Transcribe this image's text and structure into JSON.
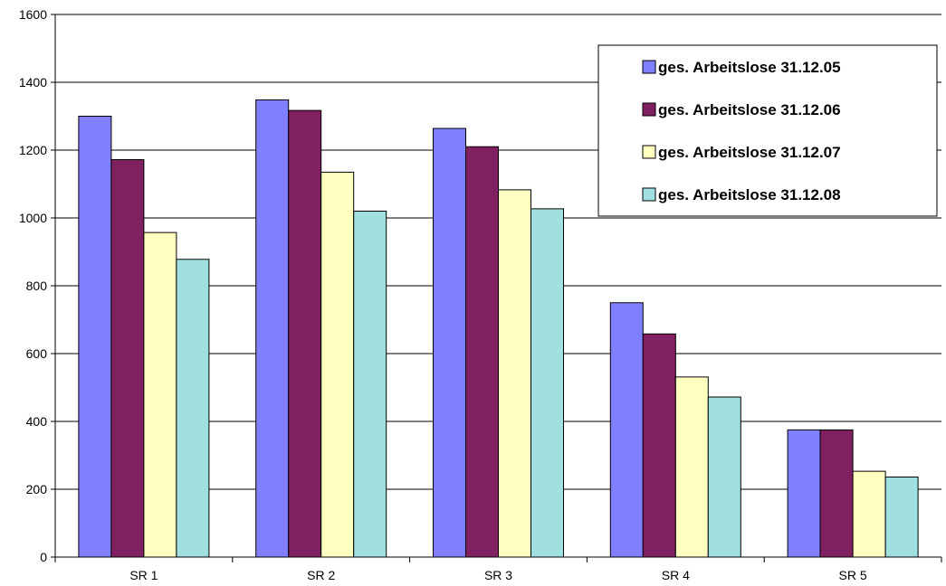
{
  "chart_data": {
    "type": "bar",
    "categories": [
      "SR 1",
      "SR 2",
      "SR 3",
      "SR 4",
      "SR 5"
    ],
    "series": [
      {
        "name": "ges. Arbeitslose 31.12.05",
        "color": "#8080FF",
        "values": [
          1300,
          1348,
          1264,
          750,
          375
        ]
      },
      {
        "name": "ges. Arbeitslose 31.12.06",
        "color": "#802060",
        "values": [
          1172,
          1317,
          1210,
          658,
          375
        ]
      },
      {
        "name": "ges. Arbeitslose 31.12.07",
        "color": "#FFFFC0",
        "values": [
          957,
          1135,
          1083,
          531,
          253
        ]
      },
      {
        "name": "ges. Arbeitslose 31.12.08",
        "color": "#A0E0E0",
        "values": [
          878,
          1020,
          1027,
          472,
          236
        ]
      }
    ],
    "yticks": [
      "0",
      "200",
      "400",
      "600",
      "800",
      "1000",
      "1200",
      "1400",
      "1600"
    ],
    "ylim": [
      0,
      1600
    ],
    "grid": true,
    "legend_position": "top-right",
    "title": "",
    "xlabel": "",
    "ylabel": ""
  }
}
